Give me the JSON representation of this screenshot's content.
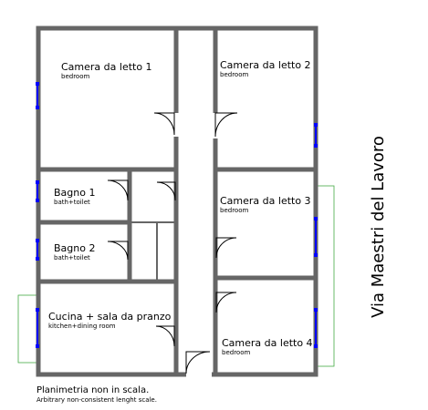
{
  "rooms": [
    {
      "name": "Camera da letto 1",
      "subtitle": "bedroom"
    },
    {
      "name": "Camera da letto 2",
      "subtitle": "bedroom"
    },
    {
      "name": "Bagno 1",
      "subtitle": "bath+toilet"
    },
    {
      "name": "Camera da letto 3",
      "subtitle": "bedroom"
    },
    {
      "name": "Bagno 2",
      "subtitle": "bath+toilet"
    },
    {
      "name": "Cucina + sala da pranzo",
      "subtitle": "kitchen+dining room"
    },
    {
      "name": "Camera da letto 4",
      "subtitle": "bedroom"
    }
  ],
  "street": "Via Maestri del Lavoro",
  "notes": {
    "title": "Planimetria non in scala.",
    "subtitle": "Arbitrary non-consistent lenght scale."
  }
}
